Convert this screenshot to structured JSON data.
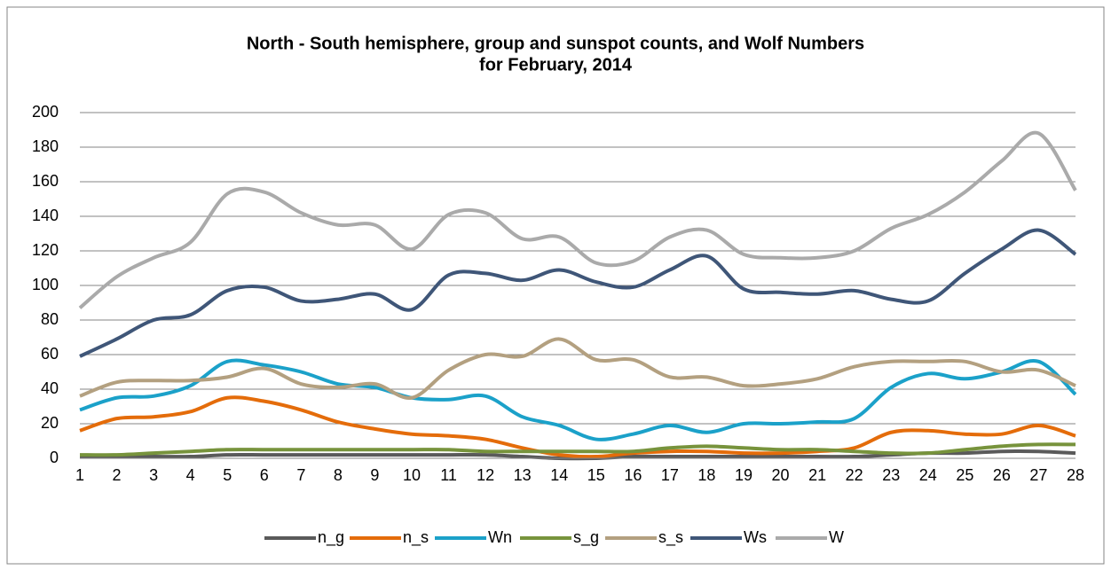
{
  "chart_data": {
    "type": "line",
    "title": "North - South hemisphere, group and sunspot counts, and Wolf Numbers",
    "subtitle": "for February, 2014",
    "categories": [
      1,
      2,
      3,
      4,
      5,
      6,
      7,
      8,
      9,
      10,
      11,
      12,
      13,
      14,
      15,
      16,
      17,
      18,
      19,
      20,
      21,
      22,
      23,
      24,
      25,
      26,
      27,
      28
    ],
    "ylim": [
      0,
      200
    ],
    "yticks": [
      0,
      20,
      40,
      60,
      80,
      100,
      120,
      140,
      160,
      180,
      200
    ],
    "grid": true,
    "legend": "bottom",
    "series": [
      {
        "name": "n_g",
        "color": "#5a5a5a",
        "values": [
          1,
          1,
          1,
          1,
          2,
          2,
          2,
          2,
          2,
          2,
          2,
          2,
          1,
          0,
          0,
          1,
          1,
          1,
          1,
          1,
          1,
          1,
          2,
          3,
          3,
          4,
          4,
          3
        ]
      },
      {
        "name": "n_s",
        "color": "#e46c0a",
        "values": [
          16,
          23,
          24,
          27,
          35,
          33,
          28,
          21,
          17,
          14,
          13,
          11,
          6,
          2,
          1,
          3,
          4,
          4,
          3,
          3,
          4,
          6,
          15,
          16,
          14,
          14,
          19,
          13
        ]
      },
      {
        "name": "Wn",
        "color": "#1ba1c9",
        "values": [
          28,
          35,
          36,
          42,
          56,
          54,
          50,
          43,
          41,
          35,
          34,
          36,
          24,
          19,
          11,
          14,
          19,
          15,
          20,
          20,
          21,
          23,
          41,
          49,
          46,
          50,
          56,
          37
        ]
      },
      {
        "name": "s_g",
        "color": "#77933c",
        "values": [
          2,
          2,
          3,
          4,
          5,
          5,
          5,
          5,
          5,
          5,
          5,
          4,
          4,
          4,
          4,
          4,
          6,
          7,
          6,
          5,
          5,
          4,
          3,
          3,
          5,
          7,
          8,
          8
        ]
      },
      {
        "name": "s_s",
        "color": "#b3a080",
        "values": [
          36,
          44,
          45,
          45,
          47,
          52,
          43,
          41,
          43,
          35,
          51,
          60,
          59,
          69,
          57,
          57,
          47,
          47,
          42,
          43,
          46,
          53,
          56,
          56,
          56,
          50,
          51,
          42
        ]
      },
      {
        "name": "Ws",
        "color": "#3f5678",
        "values": [
          59,
          69,
          80,
          83,
          97,
          99,
          91,
          92,
          95,
          86,
          106,
          107,
          103,
          109,
          102,
          99,
          109,
          117,
          98,
          96,
          95,
          97,
          92,
          91,
          107,
          121,
          132,
          118
        ]
      },
      {
        "name": "W",
        "color": "#aaaaaa",
        "values": [
          87,
          105,
          116,
          125,
          153,
          154,
          142,
          135,
          135,
          121,
          141,
          142,
          127,
          128,
          113,
          114,
          128,
          132,
          118,
          116,
          116,
          120,
          133,
          141,
          154,
          172,
          188,
          155
        ]
      }
    ]
  }
}
